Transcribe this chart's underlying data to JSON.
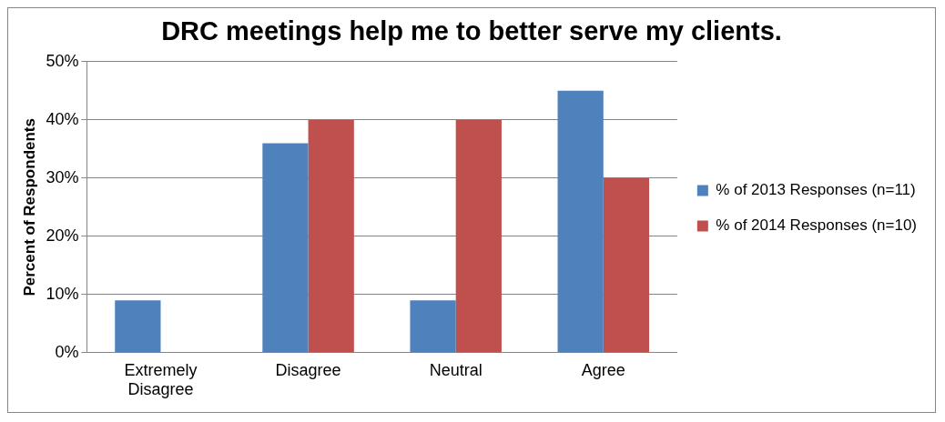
{
  "chart_data": {
    "type": "bar",
    "title": "DRC meetings help me to better serve my clients.",
    "ylabel": "Percent of Respondents",
    "categories": [
      "Extremely Disagree",
      "Disagree",
      "Neutral",
      "Agree"
    ],
    "series": [
      {
        "name": "% of 2013 Responses (n=11)",
        "color": "#4f81bd",
        "values": [
          9,
          36,
          9,
          45
        ]
      },
      {
        "name": "% of 2014 Responses (n=10)",
        "color": "#c0504d",
        "values": [
          0,
          40,
          40,
          30
        ]
      }
    ],
    "ylim": [
      0,
      50
    ],
    "yticks": [
      {
        "value": 0,
        "label": "0%"
      },
      {
        "value": 10,
        "label": "10%"
      },
      {
        "value": 20,
        "label": "20%"
      },
      {
        "value": 30,
        "label": "30%"
      },
      {
        "value": 40,
        "label": "40%"
      },
      {
        "value": 50,
        "label": "50%"
      }
    ],
    "grid": "y",
    "legend": "right"
  }
}
